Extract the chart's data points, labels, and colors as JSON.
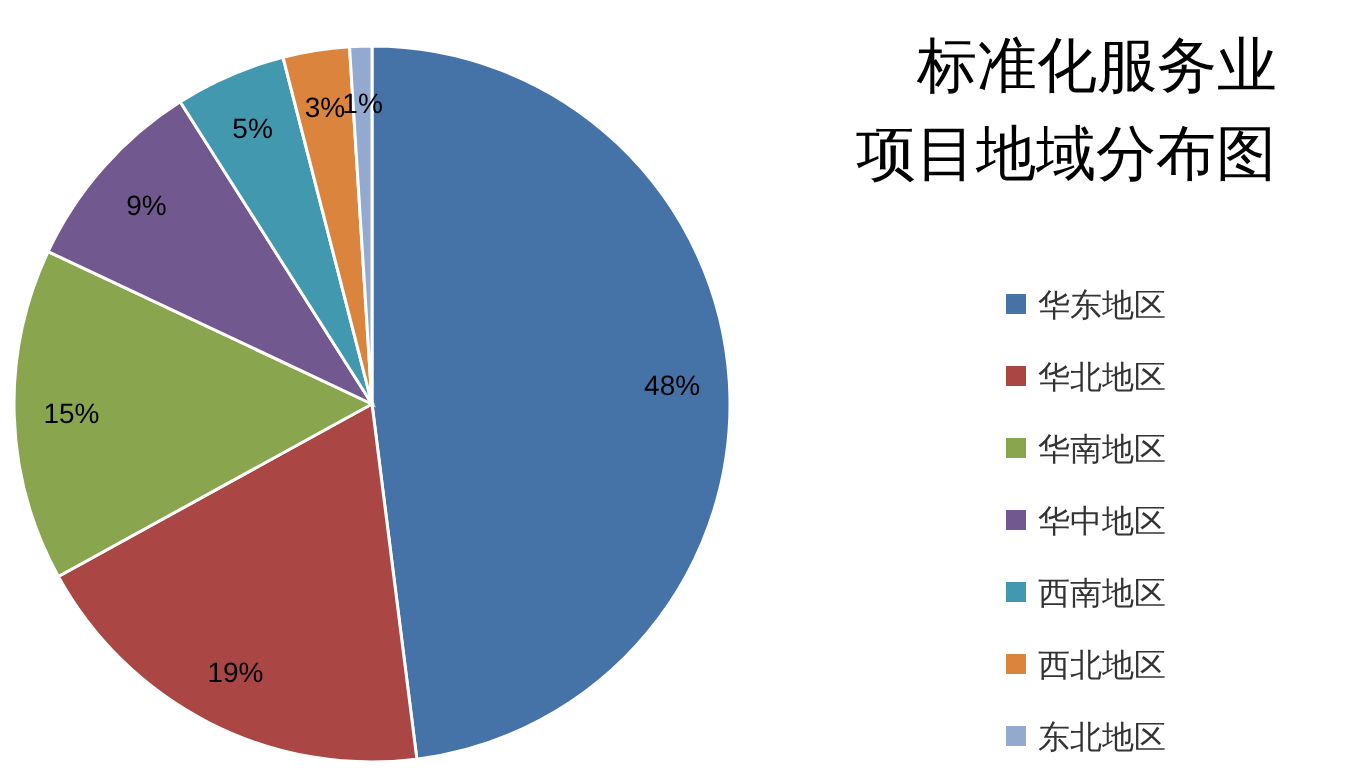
{
  "chart_data": {
    "type": "pie",
    "title": "标准化服务业项目地域分布图",
    "categories": [
      "华东地区",
      "华北地区",
      "华南地区",
      "华中地区",
      "西南地区",
      "西北地区",
      "东北地区"
    ],
    "values": [
      48,
      19,
      15,
      9,
      5,
      3,
      1
    ],
    "value_labels": [
      "48%",
      "19%",
      "15%",
      "9%",
      "5%",
      "3%",
      "1%"
    ],
    "colors": [
      "#4572a7",
      "#aa4643",
      "#89a54e",
      "#71588f",
      "#4198af",
      "#db843d",
      "#93a9cf"
    ],
    "legend": "right"
  }
}
